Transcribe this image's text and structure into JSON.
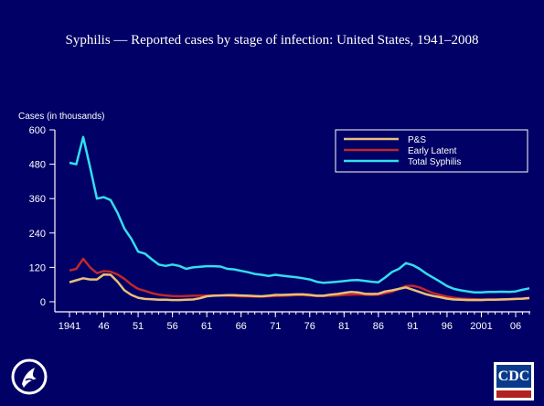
{
  "slide": {
    "title": "Syphilis — Reported cases by stage of infection: United States, 1941–2008"
  },
  "colors": {
    "background": "#000066",
    "axis": "#ffffff",
    "ps": "#e8c07a",
    "early_latent": "#c0282a",
    "total": "#33ddf0"
  },
  "chart_data": {
    "type": "line",
    "title": "Syphilis — Reported cases by stage of infection: United States, 1941–2008",
    "ylabel": "Cases (in thousands)",
    "xlabel": "",
    "ylim": [
      0,
      600
    ],
    "yticks": [
      0,
      120,
      240,
      360,
      480,
      600
    ],
    "xlim": [
      1941,
      2008
    ],
    "xtick_years": [
      1941,
      1946,
      1951,
      1956,
      1961,
      1966,
      1971,
      1976,
      1981,
      1986,
      1991,
      1996,
      2001,
      2006
    ],
    "xtick_labels": [
      "1941",
      "46",
      "51",
      "56",
      "61",
      "66",
      "71",
      "76",
      "81",
      "86",
      "91",
      "96",
      "2001",
      "06"
    ],
    "legend_position": "top-right",
    "grid": false,
    "series": [
      {
        "name": "P&S",
        "color_key": "ps",
        "x": [
          1941,
          1942,
          1943,
          1944,
          1945,
          1946,
          1947,
          1948,
          1949,
          1950,
          1951,
          1952,
          1953,
          1954,
          1955,
          1956,
          1957,
          1958,
          1959,
          1960,
          1961,
          1962,
          1963,
          1964,
          1965,
          1966,
          1967,
          1968,
          1969,
          1970,
          1971,
          1972,
          1973,
          1974,
          1975,
          1976,
          1977,
          1978,
          1979,
          1980,
          1981,
          1982,
          1983,
          1984,
          1985,
          1986,
          1987,
          1988,
          1989,
          1990,
          1991,
          1992,
          1993,
          1994,
          1995,
          1996,
          1997,
          1998,
          1999,
          2000,
          2001,
          2002,
          2003,
          2004,
          2005,
          2006,
          2007,
          2008
        ],
        "values": [
          68,
          75,
          82,
          78,
          78,
          95,
          94,
          70,
          40,
          24,
          14,
          10,
          9,
          7,
          7,
          6,
          6,
          7,
          8,
          12,
          19,
          21,
          22,
          23,
          23,
          22,
          21,
          20,
          19,
          21,
          24,
          24,
          25,
          26,
          26,
          24,
          21,
          21,
          25,
          27,
          31,
          34,
          33,
          28,
          27,
          28,
          36,
          40,
          45,
          50,
          42,
          34,
          26,
          20,
          16,
          11,
          8,
          7,
          6,
          6,
          6,
          7,
          7,
          8,
          9,
          10,
          11,
          13
        ]
      },
      {
        "name": "Early Latent",
        "color_key": "early_latent",
        "x": [
          1941,
          1942,
          1943,
          1944,
          1945,
          1946,
          1947,
          1948,
          1949,
          1950,
          1951,
          1952,
          1953,
          1954,
          1955,
          1956,
          1957,
          1958,
          1959,
          1960,
          1961,
          1962,
          1963,
          1964,
          1965,
          1966,
          1967,
          1968,
          1969,
          1970,
          1971,
          1972,
          1973,
          1974,
          1975,
          1976,
          1977,
          1978,
          1979,
          1980,
          1981,
          1982,
          1983,
          1984,
          1985,
          1986,
          1987,
          1988,
          1989,
          1990,
          1991,
          1992,
          1993,
          1994,
          1995,
          1996,
          1997,
          1998,
          1999,
          2000,
          2001,
          2002,
          2003,
          2004,
          2005,
          2006,
          2007,
          2008
        ],
        "values": [
          109,
          115,
          150,
          120,
          100,
          107,
          105,
          95,
          80,
          60,
          45,
          38,
          30,
          25,
          22,
          20,
          19,
          20,
          21,
          21,
          21,
          22,
          22,
          21,
          20,
          19,
          19,
          18,
          18,
          19,
          20,
          21,
          22,
          23,
          23,
          22,
          20,
          20,
          21,
          22,
          24,
          25,
          26,
          25,
          24,
          25,
          30,
          35,
          45,
          55,
          56,
          50,
          40,
          30,
          24,
          18,
          14,
          11,
          10,
          9,
          8,
          8,
          8,
          8,
          9,
          10,
          11,
          12
        ]
      },
      {
        "name": "Total Syphilis",
        "color_key": "total",
        "x": [
          1941,
          1942,
          1943,
          1944,
          1945,
          1946,
          1947,
          1948,
          1949,
          1950,
          1951,
          1952,
          1953,
          1954,
          1955,
          1956,
          1957,
          1958,
          1959,
          1960,
          1961,
          1962,
          1963,
          1964,
          1965,
          1966,
          1967,
          1968,
          1969,
          1970,
          1971,
          1972,
          1973,
          1974,
          1975,
          1976,
          1977,
          1978,
          1979,
          1980,
          1981,
          1982,
          1983,
          1984,
          1985,
          1986,
          1987,
          1988,
          1989,
          1990,
          1991,
          1992,
          1993,
          1994,
          1995,
          1996,
          1997,
          1998,
          1999,
          2000,
          2001,
          2002,
          2003,
          2004,
          2005,
          2006,
          2007,
          2008
        ],
        "values": [
          485,
          480,
          575,
          470,
          360,
          365,
          355,
          310,
          255,
          220,
          175,
          168,
          148,
          130,
          125,
          130,
          125,
          115,
          120,
          122,
          124,
          124,
          123,
          115,
          113,
          108,
          103,
          97,
          94,
          90,
          94,
          91,
          88,
          86,
          82,
          78,
          70,
          66,
          68,
          70,
          72,
          75,
          76,
          73,
          70,
          68,
          85,
          104,
          115,
          135,
          128,
          115,
          98,
          84,
          70,
          55,
          45,
          40,
          36,
          33,
          33,
          34,
          34,
          35,
          34,
          36,
          42,
          47
        ]
      }
    ]
  }
}
